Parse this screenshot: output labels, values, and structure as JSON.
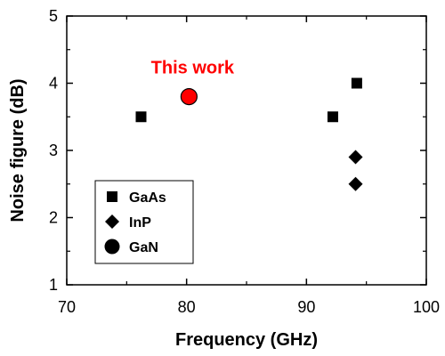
{
  "chart_data": {
    "type": "scatter",
    "xlabel": "Frequency (GHz)",
    "ylabel": "Noise figure (dB)",
    "xlim": [
      70,
      100
    ],
    "ylim": [
      1,
      5
    ],
    "xticks": [
      "70",
      "80",
      "90",
      "100"
    ],
    "yticks": [
      "1",
      "2",
      "3",
      "4",
      "5"
    ],
    "grid": false,
    "legend_position": "bottom-left",
    "series": [
      {
        "name": "GaAs",
        "marker": "square",
        "color": "#000000",
        "points": [
          {
            "x": 76.2,
            "y": 3.5
          },
          {
            "x": 92.2,
            "y": 3.5
          },
          {
            "x": 94.2,
            "y": 4.0
          }
        ]
      },
      {
        "name": "InP",
        "marker": "diamond",
        "color": "#000000",
        "points": [
          {
            "x": 94.1,
            "y": 2.9
          },
          {
            "x": 94.1,
            "y": 2.5
          }
        ]
      },
      {
        "name": "GaN",
        "marker": "circle",
        "color": "#000000",
        "points": []
      }
    ],
    "highlight": {
      "label": "This work",
      "x": 80.2,
      "y": 3.8,
      "color": "#ff0000",
      "text_color": "#ff0000"
    }
  }
}
